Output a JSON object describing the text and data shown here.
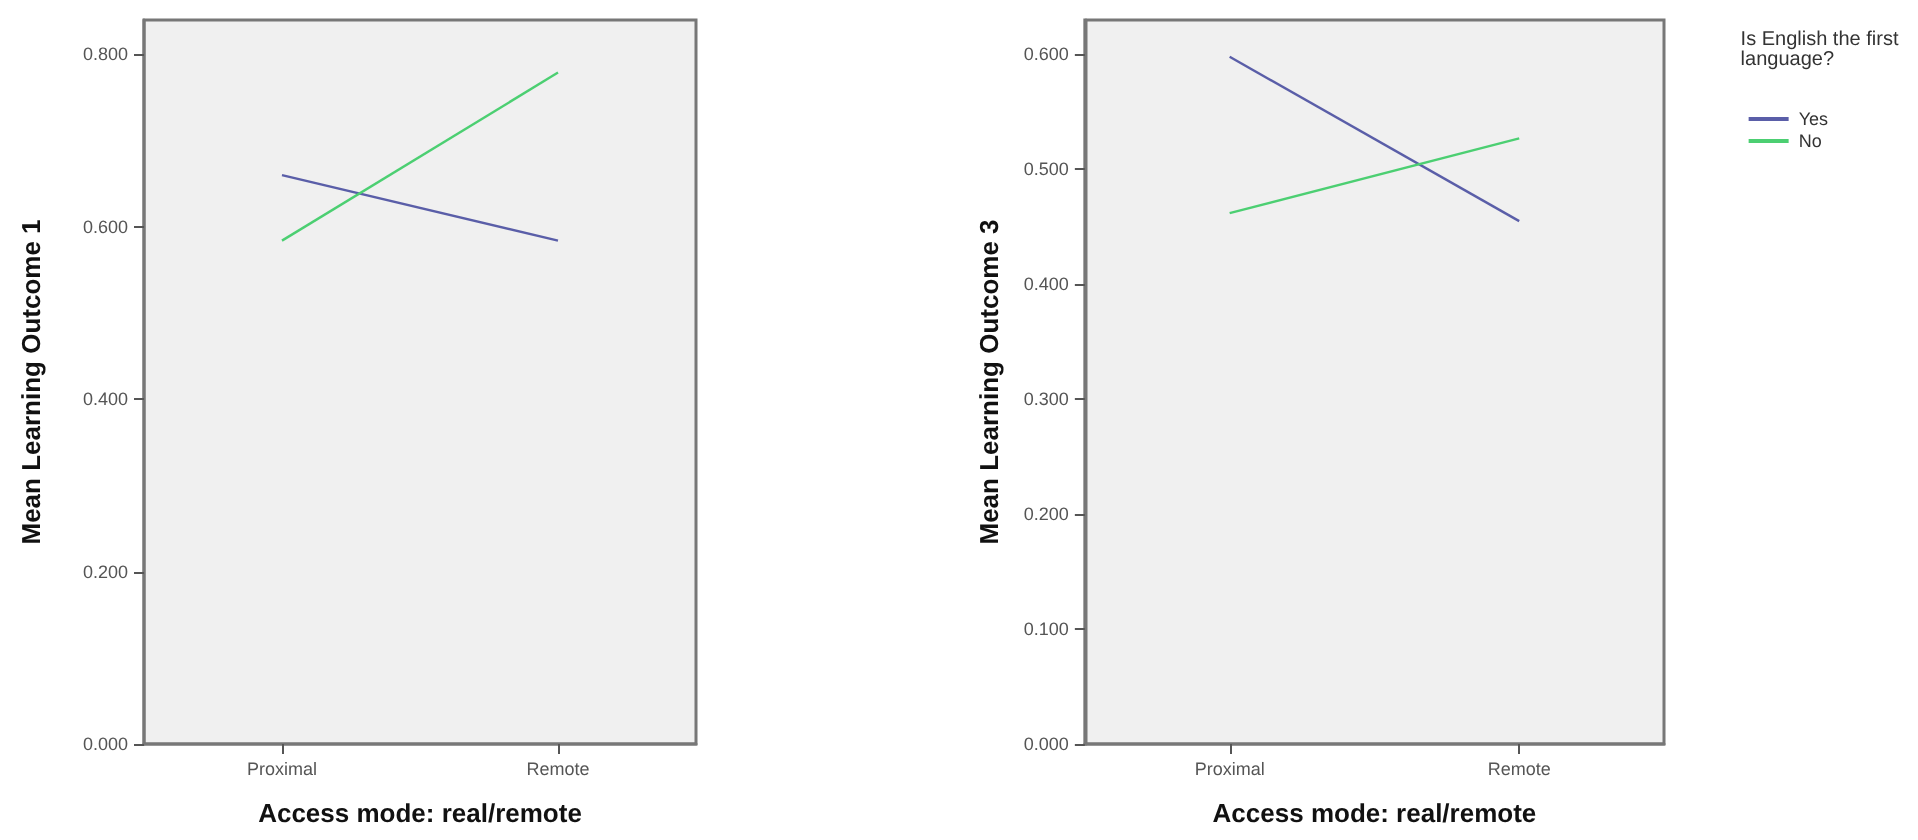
{
  "chart_data": [
    {
      "type": "line",
      "xlabel": "Access mode: real/remote",
      "ylabel": "Mean Learning Outcome 1",
      "categories": [
        "Proximal",
        "Remote"
      ],
      "series": [
        {
          "color": "#5a5ea8",
          "values": [
            0.66,
            0.584
          ]
        },
        {
          "color": "#4ccf72",
          "values": [
            0.584,
            0.779
          ]
        }
      ],
      "ylim": [
        0,
        0.84
      ],
      "yticks": [
        {
          "value": 0,
          "label": "0.000"
        },
        {
          "value": 0.2,
          "label": "0.200"
        },
        {
          "value": 0.4,
          "label": "0.400"
        },
        {
          "value": 0.6,
          "label": "0.600"
        },
        {
          "value": 0.8,
          "label": "0.800"
        }
      ],
      "grid": false,
      "legend": false,
      "marker": "none"
    },
    {
      "type": "line",
      "xlabel": "Access mode: real/remote",
      "ylabel": "Mean Learning Outcome 3",
      "legend_title": "Is English the first language?",
      "categories": [
        "Proximal",
        "Remote"
      ],
      "series": [
        {
          "name": "Yes",
          "color": "#5a5ea8",
          "values": [
            0.598,
            0.455
          ]
        },
        {
          "name": "No",
          "color": "#4ccf72",
          "values": [
            0.462,
            0.527
          ]
        }
      ],
      "ylim": [
        0,
        0.63
      ],
      "yticks": [
        {
          "value": 0,
          "label": "0.000"
        },
        {
          "value": 0.1,
          "label": "0.100"
        },
        {
          "value": 0.2,
          "label": "0.200"
        },
        {
          "value": 0.3,
          "label": "0.300"
        },
        {
          "value": 0.4,
          "label": "0.400"
        },
        {
          "value": 0.5,
          "label": "0.500"
        },
        {
          "value": 0.6,
          "label": "0.600"
        }
      ],
      "grid": false,
      "legend": "right",
      "marker": "none"
    }
  ]
}
